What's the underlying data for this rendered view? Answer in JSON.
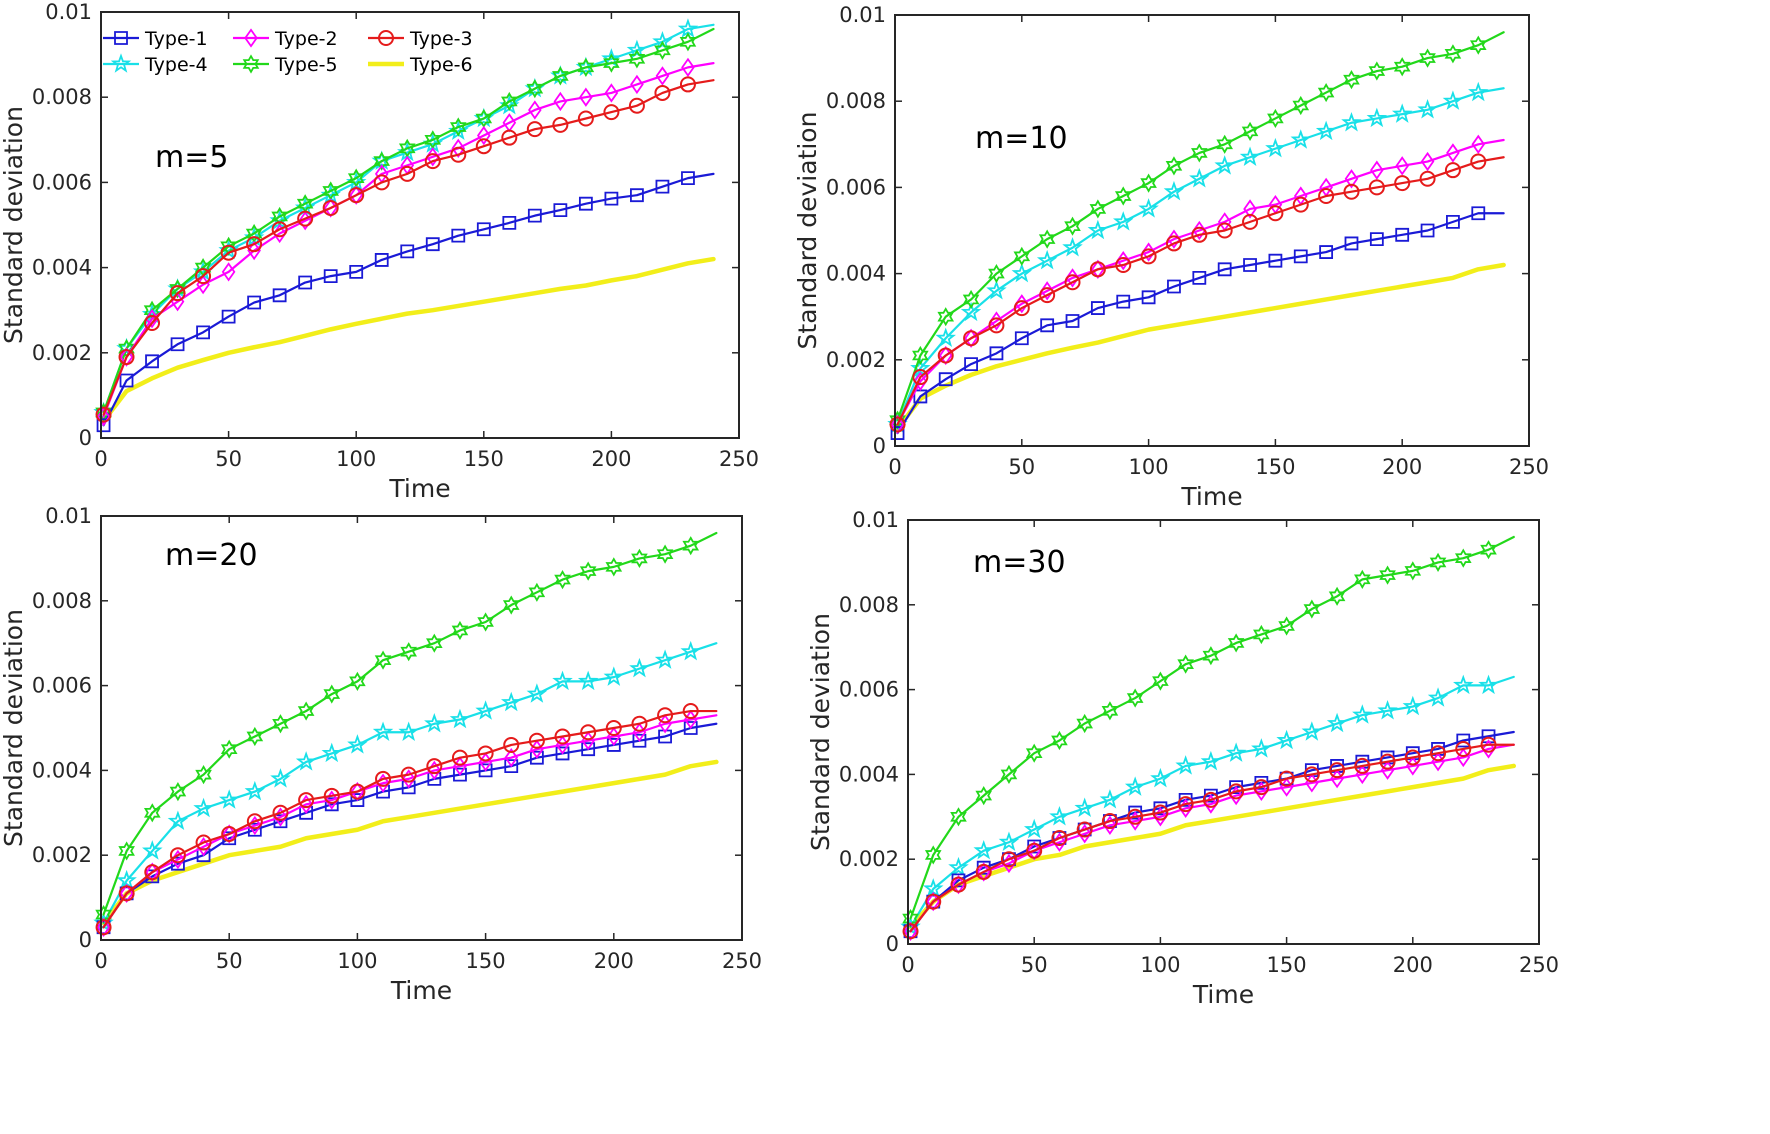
{
  "colors": {
    "Type-1": "#1a1ad6",
    "Type-2": "#ff00ff",
    "Type-3": "#e51b1b",
    "Type-4": "#19e0e8",
    "Type-5": "#22d81a",
    "Type-6": "#f2ee1a"
  },
  "markers": {
    "Type-1": "square",
    "Type-2": "diamond",
    "Type-3": "circle",
    "Type-4": "star5",
    "Type-5": "hexagram",
    "Type-6": "none"
  },
  "chart_data": [
    {
      "type": "line",
      "annotation": "m=5",
      "xlabel": "Time",
      "ylabel": "Standard deviation",
      "xlim": [
        0,
        250
      ],
      "ylim": [
        0,
        0.01
      ],
      "xticks": [
        "0",
        "50",
        "100",
        "150",
        "200",
        "250"
      ],
      "yticks": [
        "0",
        "0.002",
        "0.004",
        "0.006",
        "0.008",
        "0.01"
      ],
      "legend": [
        "Type-1",
        "Type-2",
        "Type-3",
        "Type-4",
        "Type-5",
        "Type-6"
      ],
      "x": [
        1,
        10,
        20,
        30,
        40,
        50,
        60,
        70,
        80,
        90,
        100,
        110,
        120,
        130,
        140,
        150,
        160,
        170,
        180,
        190,
        200,
        210,
        220,
        230,
        240
      ],
      "series": [
        {
          "name": "Type-1",
          "values": [
            0.0003,
            0.00135,
            0.0018,
            0.0022,
            0.00248,
            0.00285,
            0.00318,
            0.00335,
            0.00365,
            0.0038,
            0.0039,
            0.00418,
            0.00438,
            0.00455,
            0.00475,
            0.0049,
            0.00505,
            0.00522,
            0.00535,
            0.0055,
            0.00562,
            0.0057,
            0.0059,
            0.0061,
            0.0062
          ]
        },
        {
          "name": "Type-2",
          "values": [
            0.0005,
            0.0019,
            0.0028,
            0.0032,
            0.0036,
            0.0039,
            0.0044,
            0.0048,
            0.0051,
            0.0054,
            0.0057,
            0.0062,
            0.0064,
            0.0066,
            0.0068,
            0.0071,
            0.0074,
            0.0077,
            0.0079,
            0.008,
            0.0081,
            0.0083,
            0.0085,
            0.0087,
            0.0088
          ]
        },
        {
          "name": "Type-3",
          "values": [
            0.00055,
            0.0019,
            0.0027,
            0.0034,
            0.0038,
            0.00435,
            0.00455,
            0.0049,
            0.00515,
            0.0054,
            0.0057,
            0.006,
            0.0062,
            0.0065,
            0.00665,
            0.00685,
            0.00705,
            0.00725,
            0.00735,
            0.0075,
            0.00765,
            0.0078,
            0.0081,
            0.0083,
            0.0084
          ]
        },
        {
          "name": "Type-4",
          "values": [
            0.0006,
            0.0021,
            0.0029,
            0.0035,
            0.0039,
            0.0044,
            0.0047,
            0.0051,
            0.0054,
            0.0057,
            0.006,
            0.0065,
            0.0067,
            0.0069,
            0.0072,
            0.0075,
            0.0078,
            0.0082,
            0.0085,
            0.0087,
            0.0089,
            0.0091,
            0.0093,
            0.0096,
            0.0097
          ]
        },
        {
          "name": "Type-5",
          "values": [
            0.0006,
            0.0021,
            0.003,
            0.0035,
            0.004,
            0.0045,
            0.0048,
            0.0052,
            0.0055,
            0.0058,
            0.0061,
            0.0065,
            0.0068,
            0.007,
            0.0073,
            0.0075,
            0.0079,
            0.0082,
            0.0085,
            0.0087,
            0.0088,
            0.0089,
            0.0091,
            0.0093,
            0.0096
          ]
        },
        {
          "name": "Type-6",
          "values": [
            0.0004,
            0.0011,
            0.0014,
            0.00165,
            0.00183,
            0.002,
            0.00213,
            0.00225,
            0.0024,
            0.00255,
            0.00268,
            0.0028,
            0.00292,
            0.003,
            0.0031,
            0.0032,
            0.0033,
            0.0034,
            0.0035,
            0.00358,
            0.0037,
            0.0038,
            0.00395,
            0.0041,
            0.0042
          ]
        }
      ]
    },
    {
      "type": "line",
      "annotation": "m=10",
      "xlabel": "Time",
      "ylabel": "Standard deviation",
      "xlim": [
        0,
        250
      ],
      "ylim": [
        0,
        0.01
      ],
      "xticks": [
        "0",
        "50",
        "100",
        "150",
        "200",
        "250"
      ],
      "yticks": [
        "0",
        "0.002",
        "0.004",
        "0.006",
        "0.008",
        "0.01"
      ],
      "x": [
        1,
        10,
        20,
        30,
        40,
        50,
        60,
        70,
        80,
        90,
        100,
        110,
        120,
        130,
        140,
        150,
        160,
        170,
        180,
        190,
        200,
        210,
        220,
        230,
        240
      ],
      "series": [
        {
          "name": "Type-1",
          "values": [
            0.0003,
            0.00115,
            0.00155,
            0.0019,
            0.00215,
            0.0025,
            0.0028,
            0.0029,
            0.0032,
            0.00335,
            0.00345,
            0.0037,
            0.0039,
            0.0041,
            0.0042,
            0.0043,
            0.0044,
            0.0045,
            0.0047,
            0.0048,
            0.0049,
            0.005,
            0.0052,
            0.0054,
            0.0054
          ]
        },
        {
          "name": "Type-2",
          "values": [
            0.0005,
            0.0015,
            0.0021,
            0.0025,
            0.0029,
            0.0033,
            0.0036,
            0.0039,
            0.0041,
            0.0043,
            0.0045,
            0.0048,
            0.005,
            0.0052,
            0.0055,
            0.0056,
            0.0058,
            0.006,
            0.0062,
            0.0064,
            0.0065,
            0.0066,
            0.0068,
            0.007,
            0.0071
          ]
        },
        {
          "name": "Type-3",
          "values": [
            0.0005,
            0.0016,
            0.0021,
            0.0025,
            0.0028,
            0.0032,
            0.0035,
            0.0038,
            0.0041,
            0.0042,
            0.0044,
            0.0047,
            0.0049,
            0.005,
            0.0052,
            0.0054,
            0.0056,
            0.0058,
            0.0059,
            0.006,
            0.0061,
            0.0062,
            0.0064,
            0.0066,
            0.0067
          ]
        },
        {
          "name": "Type-4",
          "values": [
            0.0005,
            0.0018,
            0.0025,
            0.0031,
            0.0036,
            0.004,
            0.0043,
            0.0046,
            0.005,
            0.0052,
            0.0055,
            0.0059,
            0.0062,
            0.0065,
            0.0067,
            0.0069,
            0.0071,
            0.0073,
            0.0075,
            0.0076,
            0.0077,
            0.0078,
            0.008,
            0.0082,
            0.0083
          ]
        },
        {
          "name": "Type-5",
          "values": [
            0.0006,
            0.0021,
            0.003,
            0.0034,
            0.004,
            0.0044,
            0.0048,
            0.0051,
            0.0055,
            0.0058,
            0.0061,
            0.0065,
            0.0068,
            0.007,
            0.0073,
            0.0076,
            0.0079,
            0.0082,
            0.0085,
            0.0087,
            0.0088,
            0.009,
            0.0091,
            0.0093,
            0.0096
          ]
        },
        {
          "name": "Type-6",
          "values": [
            0.0004,
            0.0011,
            0.0014,
            0.00165,
            0.00185,
            0.002,
            0.00215,
            0.00228,
            0.0024,
            0.00255,
            0.0027,
            0.0028,
            0.0029,
            0.003,
            0.0031,
            0.0032,
            0.0033,
            0.0034,
            0.0035,
            0.0036,
            0.0037,
            0.0038,
            0.0039,
            0.0041,
            0.0042
          ]
        }
      ]
    },
    {
      "type": "line",
      "annotation": "m=20",
      "xlabel": "Time",
      "ylabel": "Standard deviation",
      "xlim": [
        0,
        250
      ],
      "ylim": [
        0,
        0.01
      ],
      "xticks": [
        "0",
        "50",
        "100",
        "150",
        "200",
        "250"
      ],
      "yticks": [
        "0",
        "0.002",
        "0.004",
        "0.006",
        "0.008",
        "0.01"
      ],
      "x": [
        1,
        10,
        20,
        30,
        40,
        50,
        60,
        70,
        80,
        90,
        100,
        110,
        120,
        130,
        140,
        150,
        160,
        170,
        180,
        190,
        200,
        210,
        220,
        230,
        240
      ],
      "series": [
        {
          "name": "Type-1",
          "values": [
            0.0003,
            0.0011,
            0.0015,
            0.0018,
            0.002,
            0.0024,
            0.0026,
            0.0028,
            0.003,
            0.0032,
            0.0033,
            0.0035,
            0.0036,
            0.0038,
            0.0039,
            0.004,
            0.0041,
            0.0043,
            0.0044,
            0.0045,
            0.0046,
            0.0047,
            0.0048,
            0.005,
            0.0051
          ]
        },
        {
          "name": "Type-2",
          "values": [
            0.0003,
            0.0011,
            0.0016,
            0.0019,
            0.0022,
            0.0025,
            0.0027,
            0.0029,
            0.0032,
            0.0033,
            0.0035,
            0.0037,
            0.0038,
            0.004,
            0.0041,
            0.0042,
            0.0043,
            0.0045,
            0.0046,
            0.0047,
            0.0048,
            0.0049,
            0.0051,
            0.0052,
            0.0053
          ]
        },
        {
          "name": "Type-3",
          "values": [
            0.0003,
            0.0011,
            0.0016,
            0.002,
            0.0023,
            0.0025,
            0.0028,
            0.003,
            0.0033,
            0.0034,
            0.0035,
            0.0038,
            0.0039,
            0.0041,
            0.0043,
            0.0044,
            0.0046,
            0.0047,
            0.0048,
            0.0049,
            0.005,
            0.0051,
            0.0053,
            0.0054,
            0.0054
          ]
        },
        {
          "name": "Type-4",
          "values": [
            0.0004,
            0.0014,
            0.0021,
            0.0028,
            0.0031,
            0.0033,
            0.0035,
            0.0038,
            0.0042,
            0.0044,
            0.0046,
            0.0049,
            0.0049,
            0.0051,
            0.0052,
            0.0054,
            0.0056,
            0.0058,
            0.0061,
            0.0061,
            0.0062,
            0.0064,
            0.0066,
            0.0068,
            0.007
          ]
        },
        {
          "name": "Type-5",
          "values": [
            0.0006,
            0.0021,
            0.003,
            0.0035,
            0.0039,
            0.0045,
            0.0048,
            0.0051,
            0.0054,
            0.0058,
            0.0061,
            0.0066,
            0.0068,
            0.007,
            0.0073,
            0.0075,
            0.0079,
            0.0082,
            0.0085,
            0.0087,
            0.0088,
            0.009,
            0.0091,
            0.0093,
            0.0096
          ]
        },
        {
          "name": "Type-6",
          "values": [
            0.0004,
            0.0011,
            0.0014,
            0.0016,
            0.0018,
            0.002,
            0.0021,
            0.0022,
            0.0024,
            0.0025,
            0.0026,
            0.0028,
            0.0029,
            0.003,
            0.0031,
            0.0032,
            0.0033,
            0.0034,
            0.0035,
            0.0036,
            0.0037,
            0.0038,
            0.0039,
            0.0041,
            0.0042
          ]
        }
      ]
    },
    {
      "type": "line",
      "annotation": "m=30",
      "xlabel": "Time",
      "ylabel": "Standard deviation",
      "xlim": [
        0,
        250
      ],
      "ylim": [
        0,
        0.01
      ],
      "xticks": [
        "0",
        "50",
        "100",
        "150",
        "200",
        "250"
      ],
      "yticks": [
        "0",
        "0.002",
        "0.004",
        "0.006",
        "0.008",
        "0.01"
      ],
      "x": [
        1,
        10,
        20,
        30,
        40,
        50,
        60,
        70,
        80,
        90,
        100,
        110,
        120,
        130,
        140,
        150,
        160,
        170,
        180,
        190,
        200,
        210,
        220,
        230,
        240
      ],
      "series": [
        {
          "name": "Type-1",
          "values": [
            0.0003,
            0.001,
            0.0015,
            0.0018,
            0.002,
            0.0023,
            0.0025,
            0.0027,
            0.0029,
            0.0031,
            0.0032,
            0.0034,
            0.0035,
            0.0037,
            0.0038,
            0.0039,
            0.0041,
            0.0042,
            0.0043,
            0.0044,
            0.0045,
            0.0046,
            0.0048,
            0.0049,
            0.005
          ]
        },
        {
          "name": "Type-2",
          "values": [
            0.0003,
            0.001,
            0.0014,
            0.0017,
            0.0019,
            0.0022,
            0.0024,
            0.0026,
            0.0028,
            0.0029,
            0.003,
            0.0032,
            0.0033,
            0.0035,
            0.0036,
            0.0037,
            0.0038,
            0.0039,
            0.004,
            0.0041,
            0.0042,
            0.0043,
            0.0044,
            0.0046,
            0.0047
          ]
        },
        {
          "name": "Type-3",
          "values": [
            0.0003,
            0.001,
            0.0014,
            0.0017,
            0.002,
            0.0022,
            0.0025,
            0.0027,
            0.0029,
            0.003,
            0.0031,
            0.0033,
            0.0034,
            0.0036,
            0.0037,
            0.0039,
            0.004,
            0.0041,
            0.0042,
            0.0043,
            0.0044,
            0.0045,
            0.0046,
            0.0047,
            0.0047
          ]
        },
        {
          "name": "Type-4",
          "values": [
            0.0004,
            0.0013,
            0.0018,
            0.0022,
            0.0024,
            0.0027,
            0.003,
            0.0032,
            0.0034,
            0.0037,
            0.0039,
            0.0042,
            0.0043,
            0.0045,
            0.0046,
            0.0048,
            0.005,
            0.0052,
            0.0054,
            0.0055,
            0.0056,
            0.0058,
            0.0061,
            0.0061,
            0.0063
          ]
        },
        {
          "name": "Type-5",
          "values": [
            0.0006,
            0.0021,
            0.003,
            0.0035,
            0.004,
            0.0045,
            0.0048,
            0.0052,
            0.0055,
            0.0058,
            0.0062,
            0.0066,
            0.0068,
            0.0071,
            0.0073,
            0.0075,
            0.0079,
            0.0082,
            0.0086,
            0.0087,
            0.0088,
            0.009,
            0.0091,
            0.0093,
            0.0096
          ]
        },
        {
          "name": "Type-6",
          "values": [
            0.0004,
            0.001,
            0.0014,
            0.0016,
            0.0018,
            0.002,
            0.0021,
            0.0023,
            0.0024,
            0.0025,
            0.0026,
            0.0028,
            0.0029,
            0.003,
            0.0031,
            0.0032,
            0.0033,
            0.0034,
            0.0035,
            0.0036,
            0.0037,
            0.0038,
            0.0039,
            0.0041,
            0.0042
          ]
        }
      ]
    }
  ]
}
